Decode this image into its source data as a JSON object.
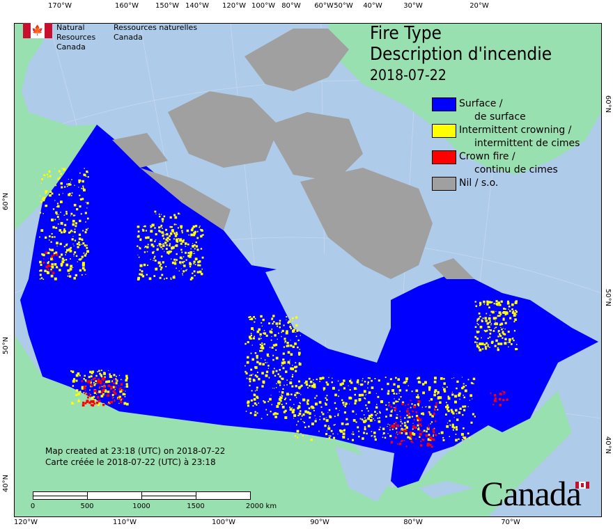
{
  "header": {
    "org_en_line1": "Natural Resources",
    "org_en_line2": "Canada",
    "org_fr_line1": "Ressources naturelles",
    "org_fr_line2": "Canada"
  },
  "title": {
    "line1": "Fire Type",
    "line2": "Description d'incendie",
    "date": "2018-07-22"
  },
  "legend": [
    {
      "label": "Surface /",
      "label2": "de surface",
      "color": "#0000ff"
    },
    {
      "label": "Intermittent crowning /",
      "label2": "intermittent de cimes",
      "color": "#ffff00"
    },
    {
      "label": "Crown fire /",
      "label2": "continu de cimes",
      "color": "#ff0000"
    },
    {
      "label": "Nil / s.o.",
      "label2": "",
      "color": "#a0a0a0"
    }
  ],
  "created": {
    "en": "Map created at 23:18 (UTC) on 2018-07-22",
    "fr": "Carte créée le 2018-07-22 (UTC) à 23:18"
  },
  "scale_bar": {
    "labels": [
      "0",
      "500",
      "1000",
      "1500",
      "2000  km"
    ]
  },
  "axes": {
    "top": [
      "170°W",
      "160°W",
      "150°W",
      "140°W",
      "120°W",
      "100°W",
      "80°W",
      "60°W",
      "50°W",
      "40°W",
      "30°W",
      "20°W"
    ],
    "bottom": [
      "120°W",
      "110°W",
      "100°W",
      "90°W",
      "80°W",
      "70°W"
    ],
    "left": [
      "60°N",
      "50°N",
      "40°N"
    ],
    "right": [
      "60°N",
      "50°N",
      "40°N"
    ]
  },
  "wordmark": "Canada",
  "colors": {
    "water": "#aecbea",
    "land": "#98e0b0",
    "surface": "#0000ff",
    "intermittent": "#ffff00",
    "crown": "#ff0000",
    "nil": "#a0a0a0"
  }
}
